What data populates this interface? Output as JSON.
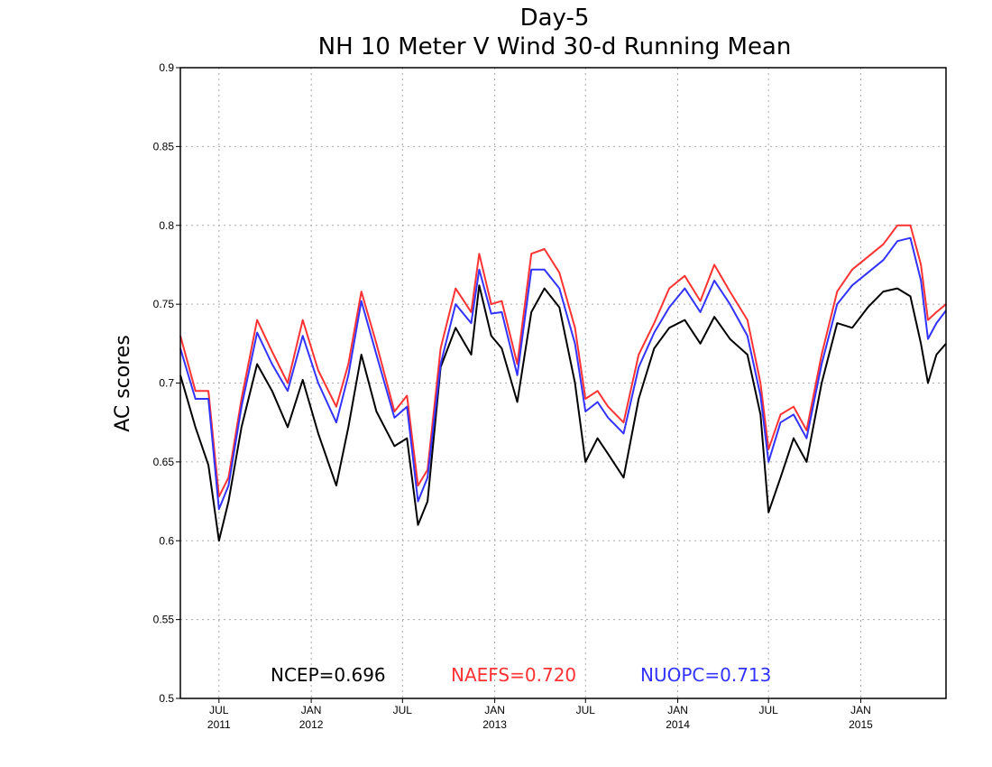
{
  "chart_data": {
    "type": "line",
    "title": "Day-5",
    "subtitle": "NH 10 Meter V Wind 30-d Running Mean",
    "ylabel": "AC scores",
    "xlabel": "",
    "ylim": [
      0.5,
      0.9
    ],
    "yticks": [
      "0.5",
      "0.55",
      "0.6",
      "0.65",
      "0.7",
      "0.75",
      "0.8",
      "0.85",
      "0.9"
    ],
    "xlim": [
      "2011-04-15",
      "2015-06-20"
    ],
    "xticks": [
      {
        "date": "2011-07-01",
        "month": "JUL",
        "year": "2011"
      },
      {
        "date": "2012-01-01",
        "month": "JAN",
        "year": "2012"
      },
      {
        "date": "2012-07-01",
        "month": "JUL",
        "year": ""
      },
      {
        "date": "2013-01-01",
        "month": "JAN",
        "year": "2013"
      },
      {
        "date": "2013-07-01",
        "month": "JUL",
        "year": ""
      },
      {
        "date": "2014-01-01",
        "month": "JAN",
        "year": "2014"
      },
      {
        "date": "2014-07-01",
        "month": "JUL",
        "year": ""
      },
      {
        "date": "2015-01-01",
        "month": "JAN",
        "year": "2015"
      }
    ],
    "grid": true,
    "x": [
      "2011-04-15",
      "2011-05-15",
      "2011-06-10",
      "2011-07-01",
      "2011-07-20",
      "2011-08-15",
      "2011-09-15",
      "2011-10-15",
      "2011-11-15",
      "2011-12-15",
      "2012-01-15",
      "2012-02-20",
      "2012-03-15",
      "2012-04-10",
      "2012-05-10",
      "2012-06-15",
      "2012-07-10",
      "2012-08-01",
      "2012-08-20",
      "2012-09-15",
      "2012-10-15",
      "2012-11-15",
      "2012-12-01",
      "2012-12-25",
      "2013-01-15",
      "2013-02-15",
      "2013-03-15",
      "2013-04-10",
      "2013-05-10",
      "2013-06-10",
      "2013-07-01",
      "2013-07-25",
      "2013-08-15",
      "2013-09-15",
      "2013-10-15",
      "2013-11-15",
      "2013-12-15",
      "2014-01-15",
      "2014-02-15",
      "2014-03-15",
      "2014-04-15",
      "2014-05-20",
      "2014-06-15",
      "2014-07-01",
      "2014-07-25",
      "2014-08-20",
      "2014-09-15",
      "2014-10-15",
      "2014-11-15",
      "2014-12-15",
      "2015-01-15",
      "2015-02-15",
      "2015-03-15",
      "2015-04-10",
      "2015-05-01",
      "2015-05-15",
      "2015-06-01",
      "2015-06-20"
    ],
    "series": [
      {
        "name": "NCEP",
        "color": "#000000",
        "values": [
          0.705,
          0.672,
          0.648,
          0.6,
          0.625,
          0.672,
          0.712,
          0.695,
          0.672,
          0.702,
          0.668,
          0.635,
          0.672,
          0.718,
          0.682,
          0.66,
          0.665,
          0.61,
          0.625,
          0.71,
          0.735,
          0.718,
          0.762,
          0.73,
          0.722,
          0.688,
          0.745,
          0.76,
          0.748,
          0.7,
          0.65,
          0.665,
          0.655,
          0.64,
          0.69,
          0.722,
          0.735,
          0.74,
          0.725,
          0.742,
          0.728,
          0.718,
          0.68,
          0.618,
          0.64,
          0.665,
          0.65,
          0.7,
          0.738,
          0.735,
          0.748,
          0.758,
          0.76,
          0.755,
          0.725,
          0.7,
          0.718,
          0.725
        ]
      },
      {
        "name": "NAEFS",
        "color": "#ff3333",
        "values": [
          0.73,
          0.695,
          0.695,
          0.628,
          0.64,
          0.69,
          0.74,
          0.72,
          0.7,
          0.74,
          0.708,
          0.685,
          0.712,
          0.758,
          0.725,
          0.682,
          0.692,
          0.635,
          0.645,
          0.722,
          0.76,
          0.745,
          0.782,
          0.75,
          0.752,
          0.712,
          0.782,
          0.785,
          0.77,
          0.735,
          0.69,
          0.695,
          0.685,
          0.675,
          0.718,
          0.738,
          0.76,
          0.768,
          0.752,
          0.775,
          0.758,
          0.74,
          0.7,
          0.658,
          0.68,
          0.685,
          0.67,
          0.718,
          0.758,
          0.772,
          0.78,
          0.788,
          0.8,
          0.8,
          0.775,
          0.74,
          0.745,
          0.75
        ]
      },
      {
        "name": "NUOPC",
        "color": "#3333ff",
        "values": [
          0.722,
          0.69,
          0.69,
          0.62,
          0.635,
          0.685,
          0.732,
          0.712,
          0.695,
          0.73,
          0.7,
          0.675,
          0.705,
          0.752,
          0.718,
          0.678,
          0.685,
          0.625,
          0.64,
          0.712,
          0.75,
          0.738,
          0.772,
          0.744,
          0.745,
          0.705,
          0.772,
          0.772,
          0.76,
          0.725,
          0.682,
          0.688,
          0.678,
          0.668,
          0.71,
          0.732,
          0.748,
          0.76,
          0.745,
          0.765,
          0.75,
          0.73,
          0.692,
          0.65,
          0.675,
          0.68,
          0.665,
          0.712,
          0.75,
          0.762,
          0.77,
          0.778,
          0.79,
          0.792,
          0.765,
          0.728,
          0.738,
          0.746
        ]
      }
    ],
    "legend": [
      {
        "text": "NCEP=0.696",
        "color": "#000000"
      },
      {
        "text": "NAEFS=0.720",
        "color": "#ff3333"
      },
      {
        "text": "NUOPC=0.713",
        "color": "#3333ff"
      }
    ],
    "legend_position": "bottom"
  }
}
